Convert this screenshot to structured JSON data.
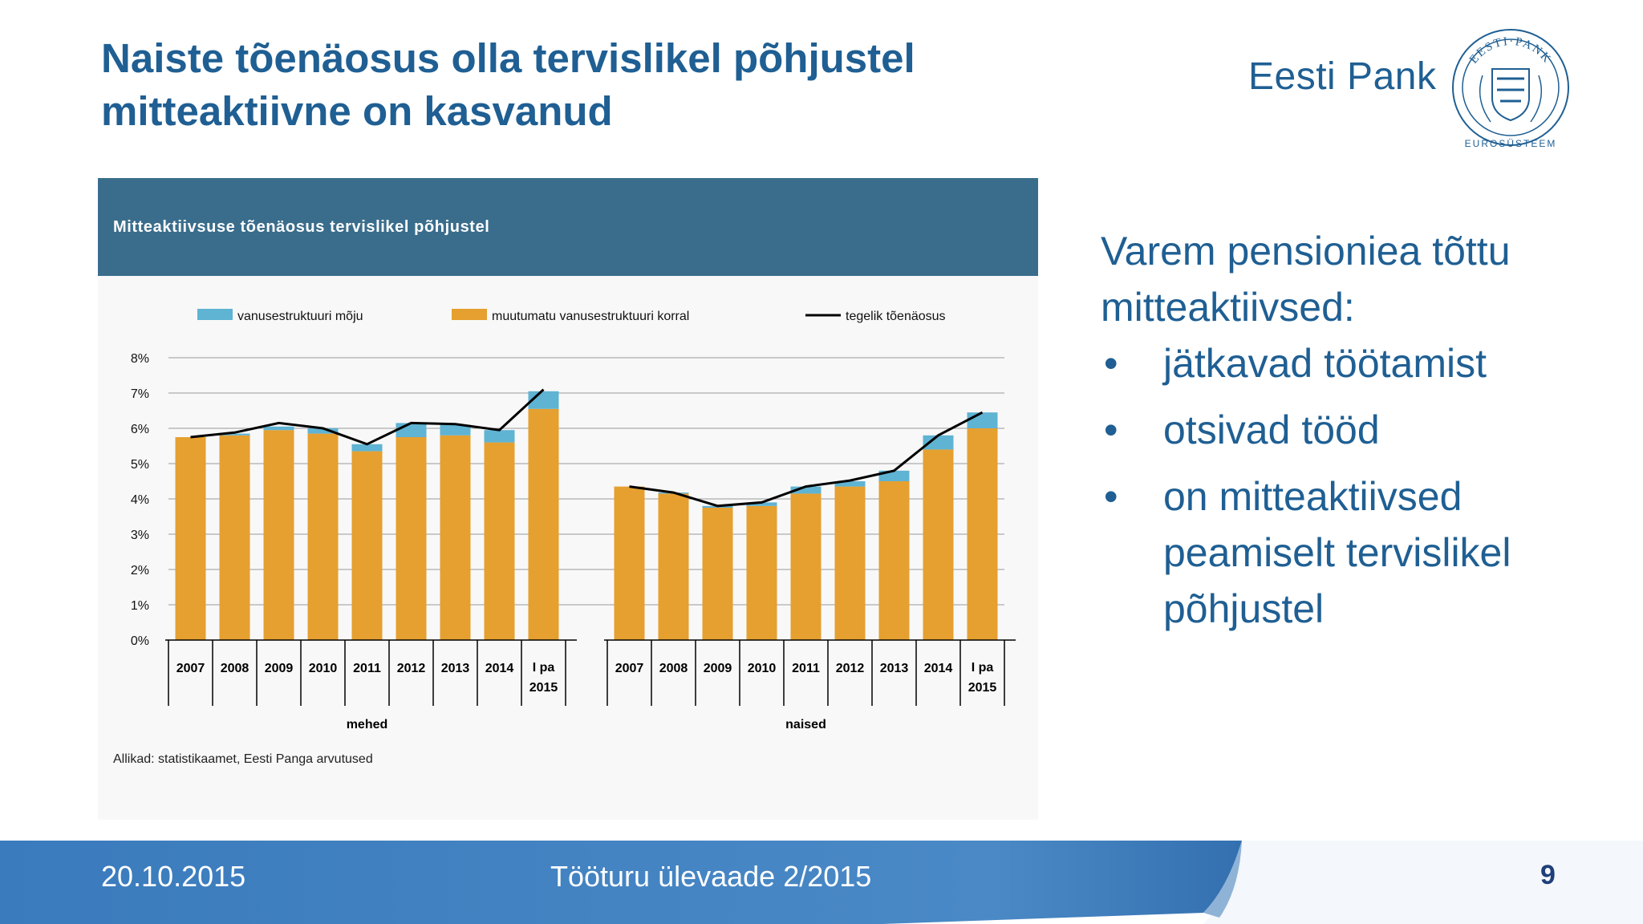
{
  "slide": {
    "title": "Naiste tõenäosus olla tervislikel põhjustel mitteaktiivne on kasvanud",
    "brand": "Eesti Pank",
    "seal_text": "EESTI·PANK",
    "seal_caption": "EUROSÜSTEEM"
  },
  "chart_data": {
    "type": "bar",
    "title": "Mitteaktiivsuse tõenäosus tervislikel põhjustel",
    "stacked": true,
    "groups": [
      "mehed",
      "naised"
    ],
    "categories": [
      "2007",
      "2008",
      "2009",
      "2010",
      "2011",
      "2012",
      "2013",
      "2014",
      "I pa 2015"
    ],
    "series": [
      {
        "name": "vanusestruktuuri mõju",
        "color": "#5fb3d3",
        "values": {
          "mehed": [
            0,
            0.05,
            0.1,
            0.15,
            0.2,
            0.4,
            0.3,
            0.35,
            0.5
          ],
          "naised": [
            0,
            0.03,
            0.05,
            0.1,
            0.2,
            0.15,
            0.3,
            0.4,
            0.45
          ]
        }
      },
      {
        "name": "muutumatu vanusestruktuuri korral",
        "color": "#e5a030",
        "values": {
          "mehed": [
            5.75,
            5.8,
            5.95,
            5.85,
            5.35,
            5.75,
            5.8,
            5.6,
            6.55
          ],
          "naised": [
            4.35,
            4.15,
            3.75,
            3.8,
            4.15,
            4.35,
            4.5,
            5.4,
            6.0
          ]
        }
      },
      {
        "name": "tegelik tõenäosus",
        "color": "#000000",
        "style": "line",
        "values": {
          "mehed": [
            5.75,
            5.88,
            6.15,
            6.0,
            5.55,
            6.15,
            6.12,
            5.95,
            7.1
          ],
          "naised": [
            4.35,
            4.18,
            3.8,
            3.9,
            4.35,
            4.52,
            4.8,
            5.8,
            6.45
          ]
        }
      }
    ],
    "y_ticks": [
      "0%",
      "1%",
      "2%",
      "3%",
      "4%",
      "5%",
      "6%",
      "7%",
      "8%"
    ],
    "ylim": [
      0,
      8
    ],
    "grid": true,
    "legend_position": "top",
    "source": "Allikad: statistikaamet, Eesti Panga arvutused"
  },
  "bullets": {
    "intro": "Varem pensioniea tõttu mitteaktiivsed:",
    "bullet_symbol": "•",
    "items": [
      "jätkavad töötamist",
      "otsivad tööd",
      "on mitteaktiivsed peamiselt tervislikel põhjustel"
    ]
  },
  "footer": {
    "date": "20.10.2015",
    "title": "Tööturu ülevaade 2/2015",
    "page_number": "9",
    "band_color": "#3a7bbd"
  }
}
